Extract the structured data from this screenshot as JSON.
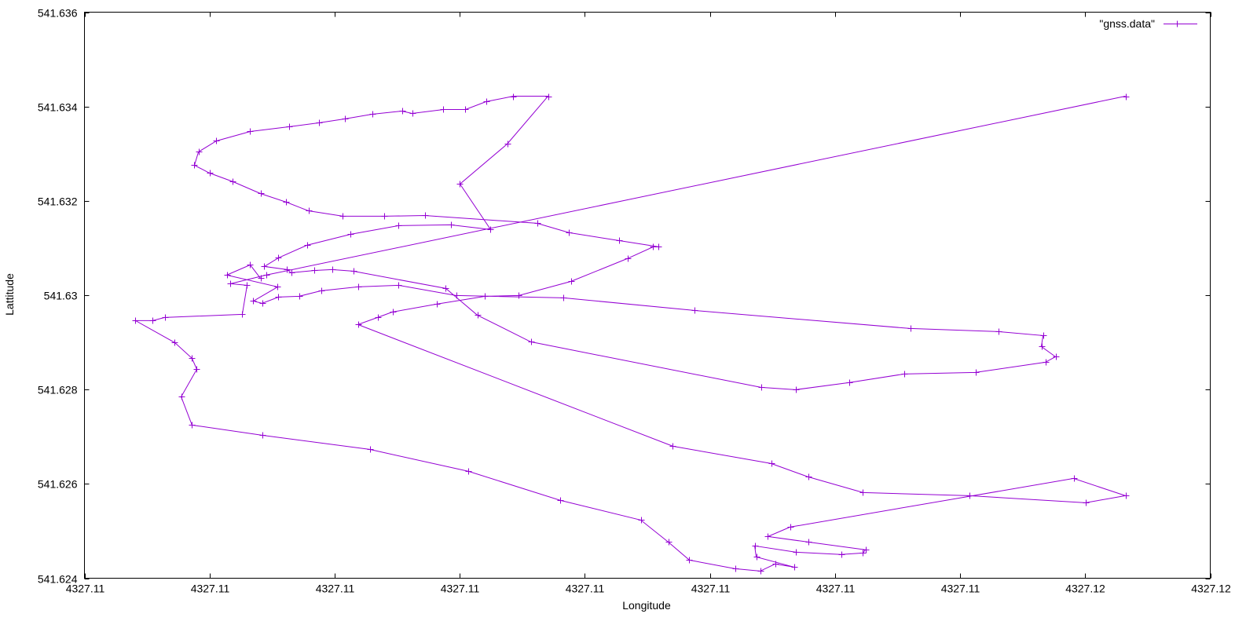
{
  "chart_data": {
    "type": "line",
    "title": "",
    "xlabel": "Longitude",
    "ylabel": "Lattitude",
    "xlim": [
      4327.108,
      4327.117
    ],
    "ylim": [
      541.624,
      541.636
    ],
    "grid": false,
    "legend_position": "top-right",
    "x_ticks": [
      4327.108,
      4327.109,
      4327.11,
      4327.111,
      4327.112,
      4327.113,
      4327.114,
      4327.115,
      4327.116,
      4327.117
    ],
    "x_tick_labels": [
      "4327.11",
      "4327.11",
      "4327.11",
      "4327.11",
      "4327.11",
      "4327.11",
      "4327.11",
      "4327.11",
      "4327.12",
      "4327.12"
    ],
    "y_ticks": [
      541.624,
      541.626,
      541.628,
      541.63,
      541.632,
      541.634,
      541.636
    ],
    "y_tick_labels": [
      "541.624",
      "541.626",
      "541.628",
      "541.63",
      "541.632",
      "541.634",
      "541.636"
    ],
    "series": [
      {
        "name": "\"gnss.data\"",
        "color": "#9400d3",
        "marker": "plus",
        "points": [
          [
            4327.116322,
            541.634219
          ],
          [
            4327.109451,
            541.630426
          ],
          [
            4327.109168,
            541.630243
          ],
          [
            4327.1093,
            541.630209
          ],
          [
            4327.109262,
            541.629594
          ],
          [
            4327.108641,
            541.629527
          ],
          [
            4327.108546,
            541.62946
          ],
          [
            4327.108408,
            541.62946
          ],
          [
            4327.108722,
            541.628995
          ],
          [
            4327.10886,
            541.628662
          ],
          [
            4327.108898,
            541.628429
          ],
          [
            4327.108773,
            541.627846
          ],
          [
            4327.10886,
            541.627247
          ],
          [
            4327.10942,
            541.627031
          ],
          [
            4327.11028,
            541.626732
          ],
          [
            4327.111071,
            541.626266
          ],
          [
            4327.111806,
            541.62565
          ],
          [
            4327.112447,
            541.625234
          ],
          [
            4327.112667,
            541.624768
          ],
          [
            4327.112836,
            541.624385
          ],
          [
            4327.113201,
            541.624202
          ],
          [
            4327.113402,
            541.624152
          ],
          [
            4327.113521,
            541.624302
          ],
          [
            4327.113672,
            541.624236
          ],
          [
            4327.11337,
            541.624452
          ],
          [
            4327.113358,
            541.624685
          ],
          [
            4327.113684,
            541.624552
          ],
          [
            4327.114049,
            541.624502
          ],
          [
            4327.114224,
            541.624535
          ],
          [
            4327.114243,
            541.624602
          ],
          [
            4327.113785,
            541.624768
          ],
          [
            4327.113464,
            541.624884
          ],
          [
            4327.11364,
            541.625084
          ],
          [
            4327.115908,
            541.626116
          ],
          [
            4327.116322,
            541.62575
          ],
          [
            4327.116002,
            541.6256
          ],
          [
            4327.115072,
            541.62575
          ],
          [
            4327.114224,
            541.625816
          ],
          [
            4327.113785,
            541.626149
          ],
          [
            4327.11349,
            541.626432
          ],
          [
            4327.112704,
            541.626798
          ],
          [
            4327.110186,
            541.629377
          ],
          [
            4327.110343,
            541.629527
          ],
          [
            4327.110462,
            541.629644
          ],
          [
            4327.110814,
            541.62981
          ],
          [
            4327.111203,
            541.629976
          ],
          [
            4327.111473,
            541.629993
          ],
          [
            4327.111888,
            541.630292
          ],
          [
            4327.11234,
            541.630775
          ],
          [
            4327.112547,
            541.631025
          ],
          [
            4327.112591,
            541.631025
          ],
          [
            4327.112271,
            541.631158
          ],
          [
            4327.111875,
            541.631324
          ],
          [
            4327.111618,
            541.631524
          ],
          [
            4327.11072,
            541.63169
          ],
          [
            4327.110399,
            541.631674
          ],
          [
            4327.110066,
            541.631674
          ],
          [
            4327.10979,
            541.63179
          ],
          [
            4327.109614,
            541.631973
          ],
          [
            4327.109407,
            541.632156
          ],
          [
            4327.109187,
            541.632406
          ],
          [
            4327.108999,
            541.632589
          ],
          [
            4327.108879,
            541.632755
          ],
          [
            4327.108911,
            541.633038
          ],
          [
            4327.109055,
            541.633271
          ],
          [
            4327.109325,
            541.633471
          ],
          [
            4327.109639,
            541.633571
          ],
          [
            4327.109872,
            541.633654
          ],
          [
            4327.110079,
            541.633737
          ],
          [
            4327.110299,
            541.633837
          ],
          [
            4327.110538,
            541.633903
          ],
          [
            4327.110619,
            541.633853
          ],
          [
            4327.11087,
            541.633937
          ],
          [
            4327.111046,
            541.633937
          ],
          [
            4327.11121,
            541.634103
          ],
          [
            4327.111429,
            541.634219
          ],
          [
            4327.111706,
            541.634219
          ],
          [
            4327.111379,
            541.633204
          ],
          [
            4327.111002,
            541.632356
          ],
          [
            4327.111247,
            541.631391
          ],
          [
            4327.110927,
            541.631491
          ],
          [
            4327.110512,
            541.631474
          ],
          [
            4327.110129,
            541.631291
          ],
          [
            4327.109778,
            541.631058
          ],
          [
            4327.109551,
            541.630792
          ],
          [
            4327.109438,
            541.630609
          ],
          [
            4327.10962,
            541.630542
          ],
          [
            4327.109652,
            541.630476
          ],
          [
            4327.10984,
            541.630525
          ],
          [
            4327.109979,
            541.630542
          ],
          [
            4327.110148,
            541.630509
          ],
          [
            4327.110889,
            541.630143
          ],
          [
            4327.111141,
            541.629577
          ],
          [
            4327.111568,
            541.629011
          ],
          [
            4327.113408,
            541.628046
          ],
          [
            4327.113684,
            541.627996
          ],
          [
            4327.114111,
            541.628146
          ],
          [
            4327.114551,
            541.628329
          ],
          [
            4327.115123,
            541.628362
          ],
          [
            4327.115682,
            541.628579
          ],
          [
            4327.115763,
            541.628695
          ],
          [
            4327.11565,
            541.628911
          ],
          [
            4327.115663,
            541.629144
          ],
          [
            4327.115305,
            541.629228
          ],
          [
            4327.114601,
            541.629294
          ],
          [
            4327.112874,
            541.629677
          ],
          [
            4327.111831,
            541.629943
          ],
          [
            4327.110971,
            541.629993
          ],
          [
            4327.110512,
            541.630209
          ],
          [
            4327.110186,
            541.630176
          ],
          [
            4327.109891,
            541.630093
          ],
          [
            4327.109715,
            541.629976
          ],
          [
            4327.109551,
            541.62996
          ],
          [
            4327.10942,
            541.629827
          ],
          [
            4327.10935,
            541.629876
          ],
          [
            4327.109545,
            541.630176
          ],
          [
            4327.109137,
            541.630426
          ],
          [
            4327.109325,
            541.630642
          ],
          [
            4327.109407,
            541.630359
          ]
        ]
      }
    ]
  }
}
